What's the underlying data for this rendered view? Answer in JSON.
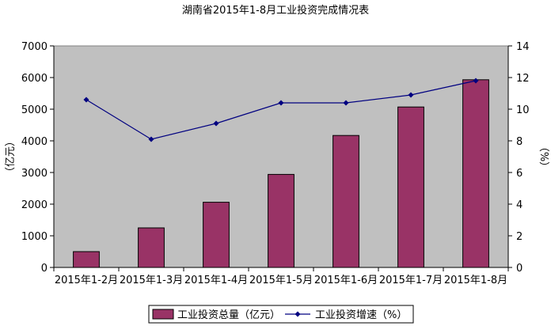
{
  "chart_data": {
    "type": "bar",
    "title": "湖南省2015年1-8月工业投资完成情况表",
    "categories": [
      "2015年1-2月",
      "2015年1-3月",
      "2015年1-4月",
      "2015年1-5月",
      "2015年1-6月",
      "2015年1-7月",
      "2015年1-8月"
    ],
    "series": [
      {
        "name": "工业投资总量（亿元）",
        "type": "bar",
        "axis": "left",
        "color": "#993366",
        "values": [
          500,
          1250,
          2060,
          2940,
          4170,
          5070,
          5930
        ]
      },
      {
        "name": "工业投资增速（%）",
        "type": "line",
        "axis": "right",
        "color": "#000080",
        "values": [
          10.6,
          8.1,
          9.1,
          10.4,
          10.4,
          10.9,
          11.8
        ]
      }
    ],
    "ylabel": "（亿元）",
    "y2label": "（%）",
    "ylim": [
      0,
      7000
    ],
    "y2lim": [
      0,
      14
    ],
    "yticks": [
      "0",
      "1000",
      "2000",
      "3000",
      "4000",
      "5000",
      "6000",
      "7000"
    ],
    "y2ticks": [
      "0",
      "2",
      "4",
      "6",
      "8",
      "10",
      "12",
      "14"
    ],
    "plot_background": "#c0c0c0",
    "grid": false,
    "legend": "bottom"
  }
}
